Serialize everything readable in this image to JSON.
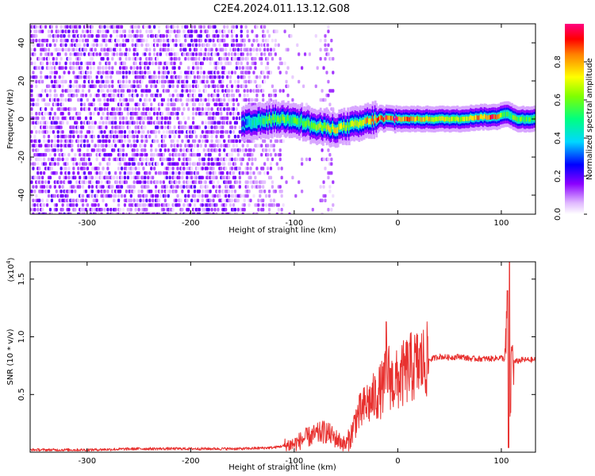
{
  "title": "C2E4.2024.011.13.12.G08",
  "chart_data": [
    {
      "type": "heatmap",
      "xlabel": "Height of straight line (km)",
      "ylabel": "Frequency (Hz)",
      "xlim": [
        -355,
        133
      ],
      "ylim": [
        -50,
        50
      ],
      "x_ticks": [
        -300,
        -200,
        -100,
        0,
        100
      ],
      "x_tick_labels": [
        "-300",
        "-200",
        "-100",
        "0",
        "100"
      ],
      "y_ticks": [
        -40,
        -20,
        0,
        20,
        40
      ],
      "y_tick_labels": [
        "-40",
        "-20",
        "0",
        "20",
        "40"
      ],
      "colorbar": {
        "label": "Normalized spectral amplitude",
        "ticks": [
          0.0,
          0.2,
          0.4,
          0.6,
          0.8
        ],
        "tick_labels": [
          "0.0",
          "0.2",
          "0.4",
          "0.6",
          "0.8"
        ],
        "range": [
          0,
          1
        ]
      },
      "ridge": {
        "x": [
          -150,
          -140,
          -120,
          -100,
          -80,
          -60,
          -40,
          -20,
          0,
          20,
          40,
          60,
          80,
          95,
          105,
          115,
          133
        ],
        "frequency": [
          -3,
          -2,
          0,
          0,
          -4,
          -5,
          -3,
          0,
          0,
          0,
          0,
          0,
          1,
          1,
          3,
          0,
          0
        ],
        "amplitude": [
          0.2,
          0.45,
          0.6,
          0.55,
          0.6,
          0.7,
          0.65,
          0.85,
          0.9,
          0.75,
          0.7,
          0.7,
          0.8,
          0.9,
          0.5,
          0.6,
          0.5
        ]
      },
      "noise_region": [
        -355,
        -110
      ],
      "grid": false
    },
    {
      "type": "line",
      "xlabel": "Height of straight line (km)",
      "ylabel": "SNR (10 * v/v)",
      "y_multiplier_label": "(x10",
      "y_multiplier_exp": "4",
      "xlim": [
        -355,
        133
      ],
      "ylim": [
        0,
        1.65
      ],
      "x_ticks": [
        -300,
        -200,
        -100,
        0,
        100
      ],
      "x_tick_labels": [
        "-300",
        "-200",
        "-100",
        "0",
        "100"
      ],
      "y_ticks": [
        0.5,
        1.0,
        1.5
      ],
      "y_tick_labels": [
        "0.5",
        "1.0",
        "1.5"
      ],
      "color": "#e8312f",
      "grid": false,
      "series": [
        {
          "x": [
            -355,
            -300,
            -250,
            -200,
            -150,
            -120,
            -100,
            -90,
            -80,
            -70,
            -60,
            -50,
            -45,
            -40,
            -35,
            -30,
            -25,
            -20,
            -15,
            -12,
            -10,
            -5,
            0,
            10,
            20,
            30,
            40,
            50,
            60,
            70,
            80,
            90,
            100,
            104,
            106,
            108,
            110,
            112,
            120,
            133
          ],
          "y": [
            0.02,
            0.02,
            0.03,
            0.03,
            0.03,
            0.04,
            0.07,
            0.12,
            0.15,
            0.18,
            0.12,
            0.06,
            0.15,
            0.3,
            0.35,
            0.42,
            0.45,
            0.5,
            0.55,
            0.62,
            0.7,
            0.6,
            0.62,
            0.72,
            0.76,
            0.8,
            0.83,
            0.82,
            0.83,
            0.81,
            0.81,
            0.81,
            0.82,
            0.8,
            1.3,
            0.05,
            0.9,
            0.78,
            0.8,
            0.8
          ]
        }
      ],
      "spikes": [
        {
          "x": -11,
          "y": 1.13
        },
        {
          "x": 106,
          "y": 1.4
        },
        {
          "x": 108,
          "y": 1.65
        },
        {
          "x": 107,
          "y": 0.04
        }
      ]
    }
  ]
}
